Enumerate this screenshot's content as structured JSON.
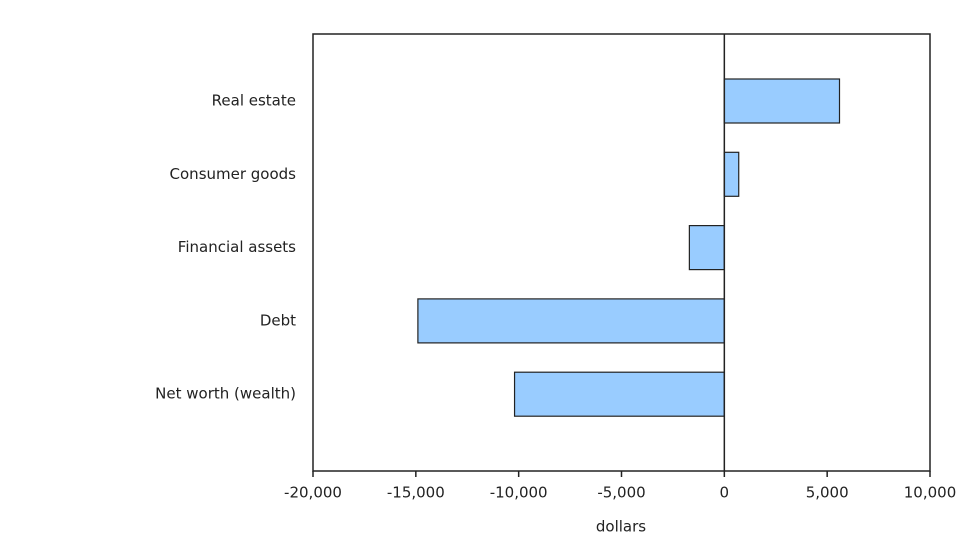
{
  "chart_data": {
    "type": "bar",
    "orientation": "horizontal",
    "categories": [
      "Real estate",
      "Consumer goods",
      "Financial assets",
      "Debt",
      "Net worth (wealth)"
    ],
    "values": [
      5600,
      700,
      -1700,
      -14900,
      -10200
    ],
    "color": "#99ccff",
    "xlabel": "dollars",
    "xlim": [
      -20000,
      10000
    ],
    "xticks": [
      {
        "value": -20000,
        "label": "-20,000"
      },
      {
        "value": -15000,
        "label": "-15,000"
      },
      {
        "value": -10000,
        "label": "-10,000"
      },
      {
        "value": -5000,
        "label": "-5,000"
      },
      0,
      {
        "value": 5000,
        "label": "5,000"
      },
      {
        "value": 10000,
        "label": "10,000"
      }
    ]
  }
}
